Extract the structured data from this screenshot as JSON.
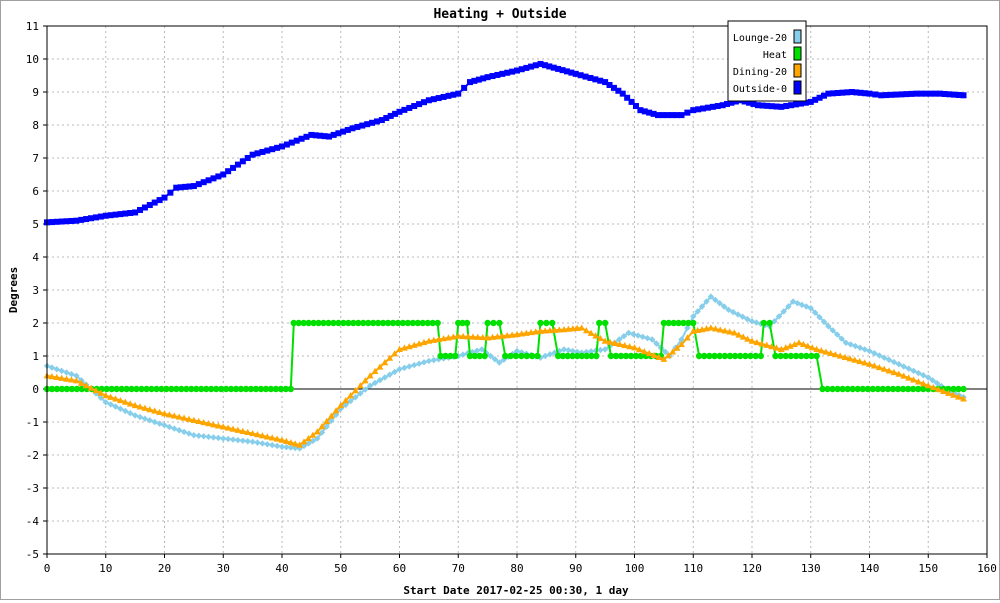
{
  "chart_data": {
    "type": "line",
    "title": "Heating + Outside",
    "xlabel": "Start Date 2017-02-25 00:30, 1 day",
    "ylabel": "Degrees",
    "xlim": [
      0,
      160
    ],
    "ylim": [
      -5,
      11
    ],
    "xticks": [
      0,
      10,
      20,
      30,
      40,
      50,
      60,
      70,
      80,
      90,
      100,
      110,
      120,
      130,
      140,
      150,
      160
    ],
    "yticks": [
      -5,
      -4,
      -3,
      -2,
      -1,
      0,
      1,
      2,
      3,
      4,
      5,
      6,
      7,
      8,
      9,
      10,
      11
    ],
    "grid": true,
    "legend_position": "top-right",
    "series": [
      {
        "name": "Lounge-20",
        "color": "#87ceeb",
        "marker": "diamond",
        "points": [
          [
            0,
            0.7
          ],
          [
            5,
            0.4
          ],
          [
            10,
            -0.4
          ],
          [
            15,
            -0.8
          ],
          [
            20,
            -1.1
          ],
          [
            25,
            -1.4
          ],
          [
            30,
            -1.5
          ],
          [
            35,
            -1.6
          ],
          [
            40,
            -1.75
          ],
          [
            43,
            -1.8
          ],
          [
            46,
            -1.5
          ],
          [
            50,
            -0.6
          ],
          [
            55,
            0.1
          ],
          [
            60,
            0.6
          ],
          [
            65,
            0.85
          ],
          [
            70,
            1.0
          ],
          [
            74,
            1.2
          ],
          [
            77,
            0.8
          ],
          [
            80,
            1.15
          ],
          [
            84,
            0.95
          ],
          [
            88,
            1.2
          ],
          [
            91,
            1.1
          ],
          [
            95,
            1.2
          ],
          [
            99,
            1.7
          ],
          [
            103,
            1.5
          ],
          [
            106,
            1.0
          ],
          [
            108,
            1.5
          ],
          [
            110,
            2.2
          ],
          [
            113,
            2.8
          ],
          [
            116,
            2.4
          ],
          [
            120,
            2.05
          ],
          [
            123,
            1.9
          ],
          [
            127,
            2.65
          ],
          [
            130,
            2.45
          ],
          [
            133,
            1.9
          ],
          [
            136,
            1.4
          ],
          [
            140,
            1.15
          ],
          [
            145,
            0.75
          ],
          [
            150,
            0.35
          ],
          [
            153,
            0.0
          ],
          [
            156,
            -0.25
          ]
        ]
      },
      {
        "name": "Heat",
        "color": "#00e000",
        "marker": "circle",
        "points": [
          [
            0,
            0
          ],
          [
            41.5,
            0
          ],
          [
            42,
            2
          ],
          [
            66.5,
            2
          ],
          [
            67,
            1
          ],
          [
            69.5,
            1
          ],
          [
            70,
            2
          ],
          [
            71.5,
            2
          ],
          [
            72,
            1
          ],
          [
            74.5,
            1
          ],
          [
            75,
            2
          ],
          [
            77,
            2
          ],
          [
            78,
            1
          ],
          [
            83.5,
            1
          ],
          [
            84,
            2
          ],
          [
            86,
            2
          ],
          [
            87,
            1
          ],
          [
            93.5,
            1
          ],
          [
            94,
            2
          ],
          [
            95,
            2
          ],
          [
            96,
            1
          ],
          [
            104.5,
            1
          ],
          [
            105,
            2
          ],
          [
            110,
            2
          ],
          [
            111,
            1
          ],
          [
            121.5,
            1
          ],
          [
            122,
            2
          ],
          [
            123,
            2
          ],
          [
            124,
            1
          ],
          [
            131,
            1
          ],
          [
            132,
            0
          ],
          [
            156,
            0
          ]
        ]
      },
      {
        "name": "Dining-20",
        "color": "#ffa500",
        "marker": "triangle",
        "points": [
          [
            0,
            0.4
          ],
          [
            5,
            0.25
          ],
          [
            10,
            -0.2
          ],
          [
            15,
            -0.5
          ],
          [
            20,
            -0.75
          ],
          [
            25,
            -0.95
          ],
          [
            30,
            -1.15
          ],
          [
            35,
            -1.35
          ],
          [
            40,
            -1.55
          ],
          [
            43,
            -1.7
          ],
          [
            46,
            -1.3
          ],
          [
            50,
            -0.5
          ],
          [
            55,
            0.4
          ],
          [
            60,
            1.2
          ],
          [
            65,
            1.45
          ],
          [
            70,
            1.6
          ],
          [
            75,
            1.55
          ],
          [
            80,
            1.65
          ],
          [
            84,
            1.75
          ],
          [
            88,
            1.8
          ],
          [
            91,
            1.85
          ],
          [
            95,
            1.45
          ],
          [
            100,
            1.25
          ],
          [
            105,
            0.9
          ],
          [
            108,
            1.35
          ],
          [
            110,
            1.75
          ],
          [
            113,
            1.85
          ],
          [
            117,
            1.7
          ],
          [
            120,
            1.45
          ],
          [
            125,
            1.2
          ],
          [
            128,
            1.4
          ],
          [
            131,
            1.2
          ],
          [
            135,
            1.0
          ],
          [
            140,
            0.75
          ],
          [
            145,
            0.45
          ],
          [
            150,
            0.1
          ],
          [
            156,
            -0.3
          ]
        ]
      },
      {
        "name": "Outside-0",
        "color": "#0000ff",
        "marker": "square",
        "points": [
          [
            0,
            5.05
          ],
          [
            5,
            5.1
          ],
          [
            10,
            5.25
          ],
          [
            15,
            5.35
          ],
          [
            20,
            5.8
          ],
          [
            22,
            6.1
          ],
          [
            25,
            6.15
          ],
          [
            30,
            6.5
          ],
          [
            35,
            7.1
          ],
          [
            40,
            7.35
          ],
          [
            45,
            7.7
          ],
          [
            48,
            7.65
          ],
          [
            52,
            7.9
          ],
          [
            57,
            8.15
          ],
          [
            60,
            8.4
          ],
          [
            65,
            8.75
          ],
          [
            70,
            8.95
          ],
          [
            72,
            9.3
          ],
          [
            75,
            9.45
          ],
          [
            80,
            9.65
          ],
          [
            84,
            9.85
          ],
          [
            87,
            9.7
          ],
          [
            90,
            9.55
          ],
          [
            95,
            9.3
          ],
          [
            98,
            8.95
          ],
          [
            101,
            8.45
          ],
          [
            104,
            8.3
          ],
          [
            108,
            8.3
          ],
          [
            110,
            8.45
          ],
          [
            115,
            8.6
          ],
          [
            118,
            8.75
          ],
          [
            121,
            8.6
          ],
          [
            125,
            8.55
          ],
          [
            130,
            8.7
          ],
          [
            133,
            8.95
          ],
          [
            137,
            9.0
          ],
          [
            140,
            8.95
          ],
          [
            142,
            8.9
          ],
          [
            148,
            8.95
          ],
          [
            152,
            8.95
          ],
          [
            156,
            8.9
          ]
        ]
      }
    ]
  }
}
